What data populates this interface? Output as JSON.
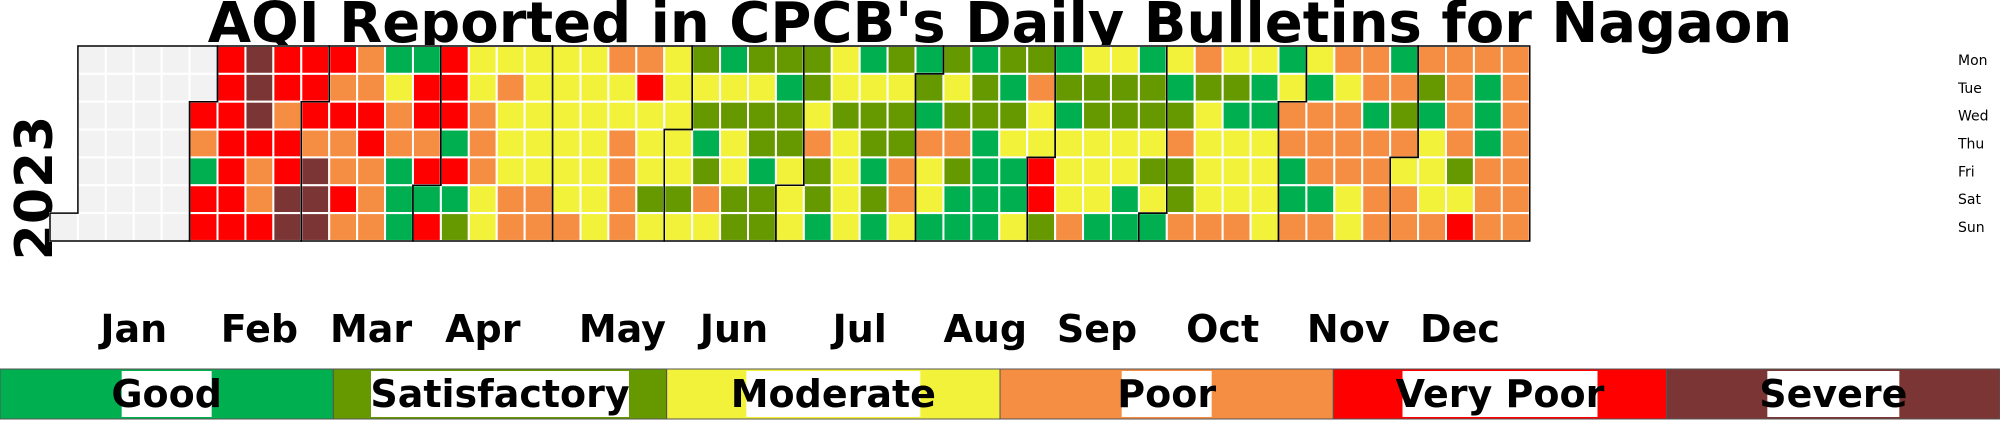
{
  "chart_data": {
    "type": "heatmap",
    "title": "AQI Reported in CPCB's Daily Bulletins for Nagaon",
    "year": "2023",
    "months": [
      "Jan",
      "Feb",
      "Mar",
      "Apr",
      "May",
      "Jun",
      "Jul",
      "Aug",
      "Sep",
      "Oct",
      "Nov",
      "Dec"
    ],
    "weekdays": [
      "Mon",
      "Tue",
      "Wed",
      "Thu",
      "Fri",
      "Sat",
      "Sun"
    ],
    "categories": [
      {
        "name": "Good",
        "color": "#00b050"
      },
      {
        "name": "Satisfactory",
        "color": "#669900"
      },
      {
        "name": "Moderate",
        "color": "#f2f23a"
      },
      {
        "name": "Poor",
        "color": "#f58e42"
      },
      {
        "name": "Very Poor",
        "color": "#ff0000"
      },
      {
        "name": "Severe",
        "color": "#7b3535"
      }
    ],
    "no_data_color": "#f2f2f2",
    "week_rows": [
      "------N",
      "NNNNNNN",
      "NNNNNNN",
      "NNNNNNN",
      "NNNNNNN",
      "NNVPGVV",
      "VVVVVVV",
      "SSSVPPV",
      "VVPVVSS",
      "VVVPSSS",
      "VPVPPVP",
      "PPVVPPP",
      "GMPPGGG",
      "GVVPVGV",
      "VVVGVGS",
      "MMPPPMM",
      "MPMMMPP",
      "MMMMMPP",
      "MMMMMMP",
      "MMMMMMM",
      "PMMPPPP",
      "PVMMMSM",
      "MMMMMSM",
      "SMSGSPM",
      "GMSMMSS",
      "SMSSGSS",
      "SGSSMMM",
      "SSMPSSG",
      "MMSMMMM",
      "GMSSGSG",
      "SMSSPPM",
      "GSGPMMG",
      "SMSPSGG",
      "GSSGGGG",
      "SGSMGGM",
      "SPMMVVS",
      "GSGMMMP",
      "MSSMMMG",
      "MSSMMGG",
      "GSSMSMG",
      "MGSPSSP",
      "PSMMMMP",
      "MSGMMMP",
      "MGGMMMM",
      "GMPPGGP",
      "MGPPPGP",
      "PMPPPMM",
      "PPGPPPP",
      "GPSPMPP",
      "PSGMMMP",
      "PPPPSMV",
      "PGGGPPP",
      "PPPPPPP"
    ]
  }
}
